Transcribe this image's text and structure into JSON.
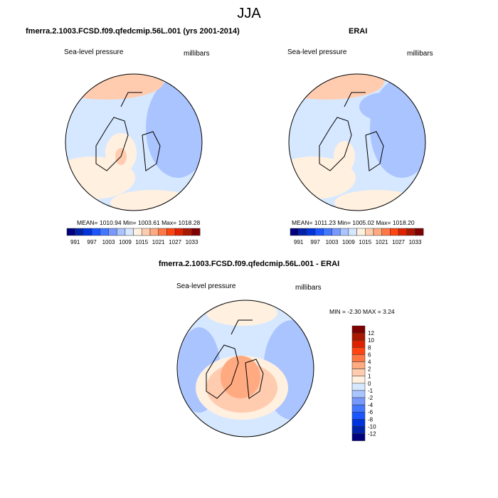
{
  "title": "JJA",
  "panels": [
    {
      "title": "fmerra.2.1003.FCSD.f09.qfedcmip.56L.001 (yrs 2001-2014)",
      "variable": "Sea-level pressure",
      "units": "millibars",
      "stats": "MEAN= 1010.94  Min= 1003.61  Max= 1018.28"
    },
    {
      "title": "ERAI",
      "variable": "Sea-level pressure",
      "units": "millibars",
      "stats": "MEAN= 1011.23  Min= 1005.02  Max= 1018.20"
    },
    {
      "title": "fmerra.2.1003.FCSD.f09.qfedcmip.56L.001 - ERAI",
      "variable": "Sea-level pressure",
      "units": "millibars",
      "stats": "MIN =  -2.30 MAX =   3.24"
    }
  ],
  "abs_colorbar": {
    "labels": [
      "991",
      "997",
      "1003",
      "1009",
      "1015",
      "1021",
      "1027",
      "1033"
    ],
    "colors": [
      "#00007f",
      "#0022aa",
      "#0033dd",
      "#1a55ff",
      "#4477ff",
      "#7799ff",
      "#aac4ff",
      "#d6e8ff",
      "#fff0e0",
      "#ffccb0",
      "#ffaa80",
      "#ff7744",
      "#ff4411",
      "#dd2200",
      "#aa1800",
      "#7f0000"
    ]
  },
  "diff_colorbar": {
    "labels": [
      "12",
      "10",
      "8",
      "6",
      "4",
      "2",
      "1",
      "0",
      "-1",
      "-2",
      "-4",
      "-6",
      "-8",
      "-10",
      "-12"
    ],
    "colors": [
      "#7f0000",
      "#aa1800",
      "#dd2200",
      "#ff4411",
      "#ff7744",
      "#ffaa80",
      "#ffccb0",
      "#fff0e0",
      "#d6e8ff",
      "#aac4ff",
      "#7799ff",
      "#4477ff",
      "#1a55ff",
      "#0033dd",
      "#0022aa",
      "#00007f"
    ]
  }
}
